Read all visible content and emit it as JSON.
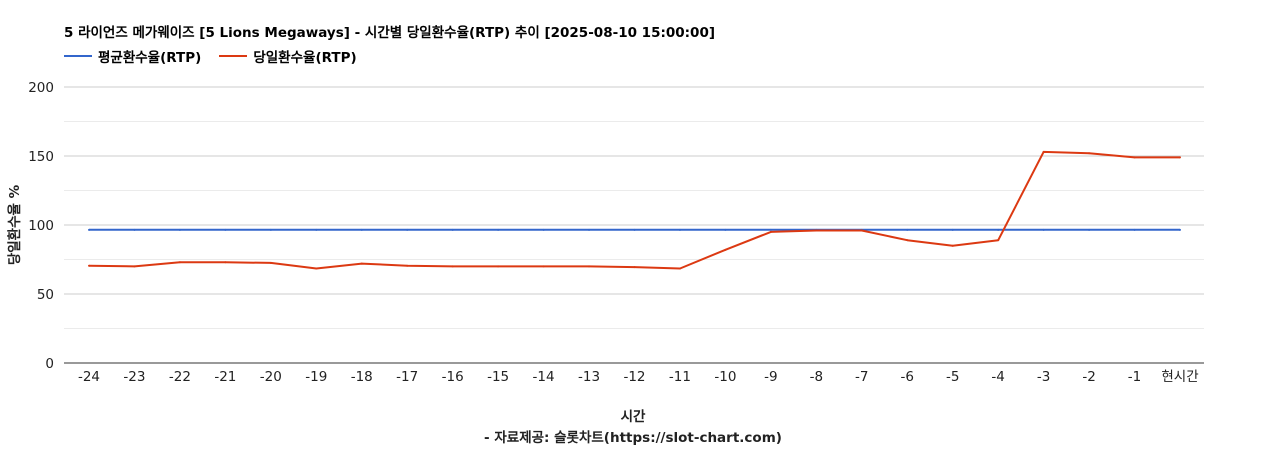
{
  "colors": {
    "avg": "#3366cc",
    "daily": "#dc3912"
  },
  "chart_data": {
    "type": "line",
    "title": "5 라이언즈 메가웨이즈 [5 Lions Megaways] - 시간별 당일환수율(RTP) 추이 [2025-08-10 15:00:00]",
    "xlabel": "시간",
    "subcaption": "- 자료제공: 슬롯차트(https://slot-chart.com)",
    "ylabel": "당일환수율 %",
    "ylim": [
      0,
      200
    ],
    "yticks": [
      0,
      50,
      100,
      150,
      200
    ],
    "grid": true,
    "legend_position": "top-left",
    "categories": [
      "-24",
      "-23",
      "-22",
      "-21",
      "-20",
      "-19",
      "-18",
      "-17",
      "-16",
      "-15",
      "-14",
      "-13",
      "-12",
      "-11",
      "-10",
      "-9",
      "-8",
      "-7",
      "-6",
      "-5",
      "-4",
      "-3",
      "-2",
      "-1",
      "현시간"
    ],
    "series": [
      {
        "name": "평균환수율(RTP)",
        "color": "#3366cc",
        "values": [
          96.5,
          96.5,
          96.5,
          96.5,
          96.5,
          96.5,
          96.5,
          96.5,
          96.5,
          96.5,
          96.5,
          96.5,
          96.5,
          96.5,
          96.5,
          96.5,
          96.5,
          96.5,
          96.5,
          96.5,
          96.5,
          96.5,
          96.5,
          96.5,
          96.5
        ]
      },
      {
        "name": "당일환수율(RTP)",
        "color": "#dc3912",
        "values": [
          70.5,
          70,
          73,
          73,
          72.5,
          68.5,
          72,
          70.5,
          70,
          70,
          70,
          70,
          69.5,
          68.5,
          82,
          95,
          96,
          96,
          89,
          85,
          89,
          153,
          152,
          149,
          149
        ]
      }
    ]
  }
}
